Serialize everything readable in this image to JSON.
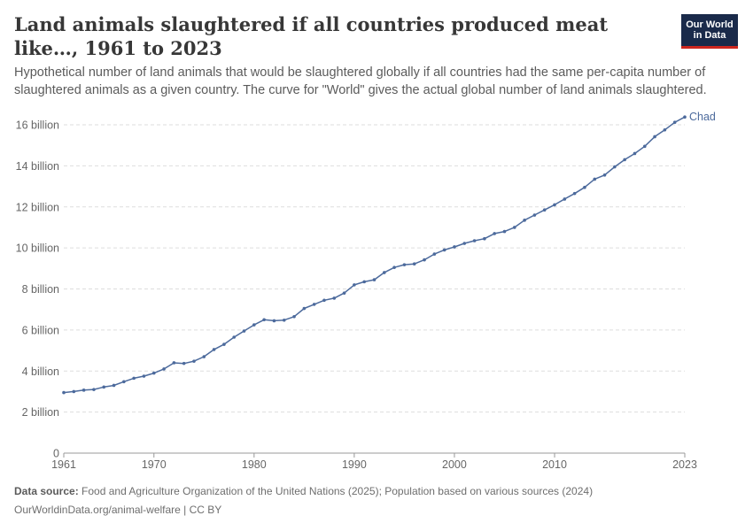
{
  "header": {
    "title": "Land animals slaughtered if all countries produced meat like…, 1961 to 2023",
    "subtitle": "Hypothetical number of land animals that would be slaughtered globally if all countries had the same per-capita number of slaughtered animals as a given country. The curve for \"World\" gives the actual global number of land animals slaughtered.",
    "logo_line1": "Our World",
    "logo_line2": "in Data"
  },
  "footer": {
    "source_label": "Data source:",
    "source_text": "Food and Agriculture Organization of the United Nations (2025); Population based on various sources (2024)",
    "url_license": "OurWorldinData.org/animal-welfare | CC BY"
  },
  "colors": {
    "series": "#4c6a9c",
    "grid": "#dddddd",
    "axis": "#999999",
    "tick_text": "#666666",
    "logo_bg": "#1a2a4a",
    "logo_accent": "#ce261e"
  },
  "chart_data": {
    "type": "line",
    "xlim": [
      1961,
      2023
    ],
    "ylim": [
      0,
      16
    ],
    "y_unit_label": "billion",
    "y_ticks": [
      0,
      2,
      4,
      6,
      8,
      10,
      12,
      14,
      16
    ],
    "y_tick_labels": [
      "0",
      "2 billion",
      "4 billion",
      "6 billion",
      "8 billion",
      "10 billion",
      "12 billion",
      "14 billion",
      "16 billion"
    ],
    "x_ticks": [
      1961,
      1970,
      1980,
      1990,
      2000,
      2010,
      2023
    ],
    "x_tick_labels": [
      "1961",
      "1970",
      "1980",
      "1990",
      "2000",
      "2010",
      "2023"
    ],
    "grid": "horizontal dashed",
    "series": [
      {
        "name": "Chad",
        "x": [
          1961,
          1962,
          1963,
          1964,
          1965,
          1966,
          1967,
          1968,
          1969,
          1970,
          1971,
          1972,
          1973,
          1974,
          1975,
          1976,
          1977,
          1978,
          1979,
          1980,
          1981,
          1982,
          1983,
          1984,
          1985,
          1986,
          1987,
          1988,
          1989,
          1990,
          1991,
          1992,
          1993,
          1994,
          1995,
          1996,
          1997,
          1998,
          1999,
          2000,
          2001,
          2002,
          2003,
          2004,
          2005,
          2006,
          2007,
          2008,
          2009,
          2010,
          2011,
          2012,
          2013,
          2014,
          2015,
          2016,
          2017,
          2018,
          2019,
          2020,
          2021,
          2022,
          2023
        ],
        "values": [
          2.95,
          3.0,
          3.07,
          3.1,
          3.22,
          3.3,
          3.48,
          3.65,
          3.75,
          3.9,
          4.1,
          4.4,
          4.37,
          4.48,
          4.7,
          5.05,
          5.3,
          5.65,
          5.95,
          6.25,
          6.5,
          6.45,
          6.48,
          6.65,
          7.05,
          7.25,
          7.45,
          7.55,
          7.8,
          8.2,
          8.35,
          8.45,
          8.8,
          9.05,
          9.18,
          9.22,
          9.42,
          9.7,
          9.9,
          10.05,
          10.22,
          10.35,
          10.45,
          10.7,
          10.8,
          11.0,
          11.35,
          11.6,
          11.85,
          12.1,
          12.38,
          12.65,
          12.95,
          13.35,
          13.55,
          13.95,
          14.3,
          14.6,
          14.95,
          15.42,
          15.75,
          16.12,
          16.38
        ]
      }
    ]
  }
}
